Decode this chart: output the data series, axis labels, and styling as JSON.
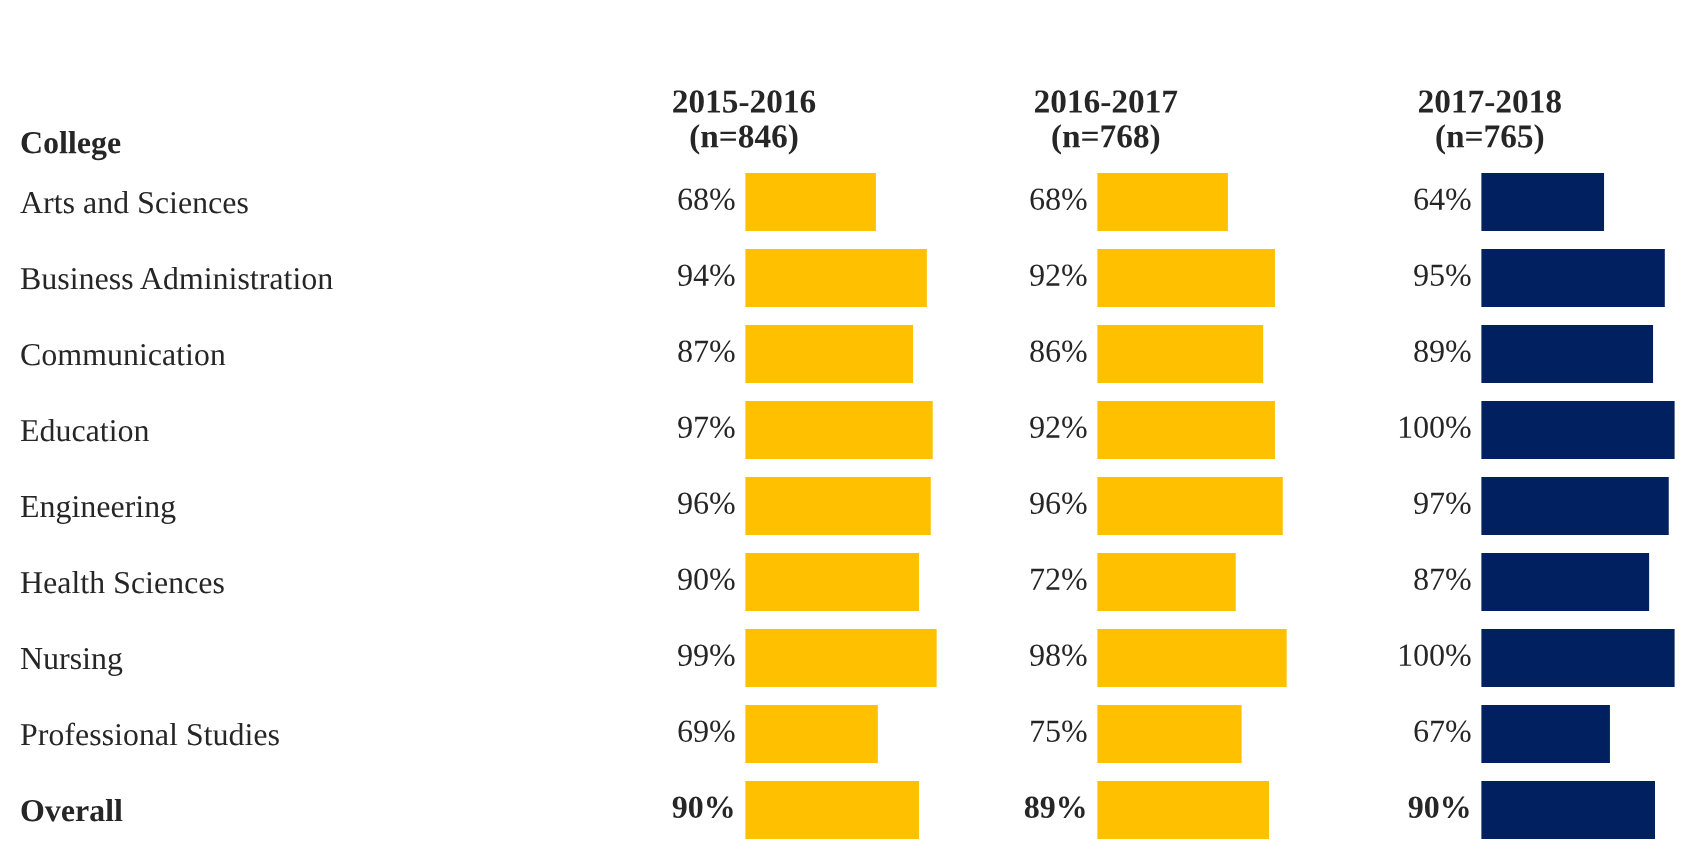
{
  "chart_data": [
    {
      "type": "bar",
      "orientation": "horizontal",
      "title": "2015-2016\n(n=846)",
      "ylabel": "College",
      "categories": [
        "Arts and Sciences",
        "Business Administration",
        "Communication",
        "Education",
        "Engineering",
        "Health Sciences",
        "Nursing",
        "Professional Studies",
        "Overall"
      ],
      "values": [
        68,
        94,
        87,
        97,
        96,
        90,
        99,
        69,
        90
      ],
      "value_labels": [
        "68%",
        "94%",
        "87%",
        "97%",
        "96%",
        "90%",
        "99%",
        "69%",
        "90%"
      ],
      "color": "#ffc000",
      "xlim": [
        0,
        100
      ],
      "tick_labels": "y",
      "grid": false,
      "legend": false
    },
    {
      "type": "bar",
      "orientation": "horizontal",
      "title": "2016-2017\n(n=768)",
      "categories": [
        null,
        null,
        null,
        null,
        null,
        null,
        null,
        null,
        null
      ],
      "values": [
        68,
        92,
        86,
        92,
        96,
        72,
        98,
        75,
        89
      ],
      "value_labels": [
        "68%",
        "92%",
        "86%",
        "92%",
        "96%",
        "72%",
        "98%",
        "75%",
        "89%"
      ],
      "color": "#ffc000",
      "xlim": [
        0,
        100
      ],
      "tick_labels": false,
      "grid": false,
      "legend": false
    },
    {
      "type": "bar",
      "orientation": "horizontal",
      "title": "2017-2018\n(n=765)",
      "categories": [
        null,
        null,
        null,
        null,
        null,
        null,
        null,
        null,
        null
      ],
      "values": [
        64,
        95,
        89,
        100,
        97,
        87,
        100,
        67,
        90
      ],
      "value_labels": [
        "64%",
        "95%",
        "89%",
        "100%",
        "97%",
        "87%",
        "100%",
        "67%",
        "90%"
      ],
      "color": "#002060",
      "xlim": [
        0,
        100
      ],
      "tick_labels": false,
      "grid": false,
      "legend": false
    }
  ]
}
